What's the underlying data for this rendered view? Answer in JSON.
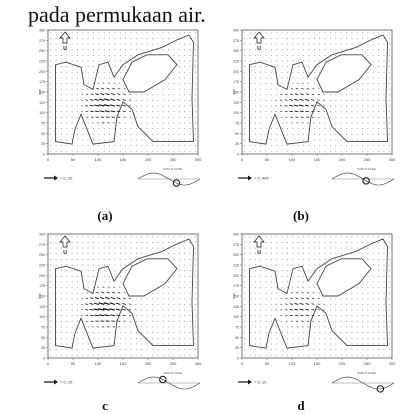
{
  "header_text": "pada permukaan air.",
  "panels": [
    {
      "caption": "(a)",
      "scale_text": "= 0. 10",
      "north_label": "U",
      "y_label": "mm",
      "wave_label": "SUDUT FASE"
    },
    {
      "caption": "(b)",
      "scale_text": "= 0. 405",
      "north_label": "U",
      "y_label": "mm",
      "wave_label": "SUDUT FASE"
    },
    {
      "caption": "c",
      "scale_text": "= 0. 10",
      "north_label": "U",
      "y_label": "mm",
      "wave_label": "SUDUT FASE"
    },
    {
      "caption": "d",
      "scale_text": "= 0. 10",
      "north_label": "U",
      "y_label": "mm",
      "wave_label": "SUDUT FASE"
    }
  ],
  "x_ticks": [
    "0",
    "50",
    "100",
    "150",
    "200",
    "250",
    "300"
  ],
  "y_ticks": [
    "0",
    "25",
    "50",
    "75",
    "100",
    "125",
    "150",
    "175",
    "200",
    "225",
    "250",
    "275",
    "300"
  ],
  "wave_markers": [
    0.62,
    0.55,
    0.4,
    0.78
  ],
  "arrow_strength": [
    1.0,
    0.8,
    1.1,
    0.7
  ]
}
